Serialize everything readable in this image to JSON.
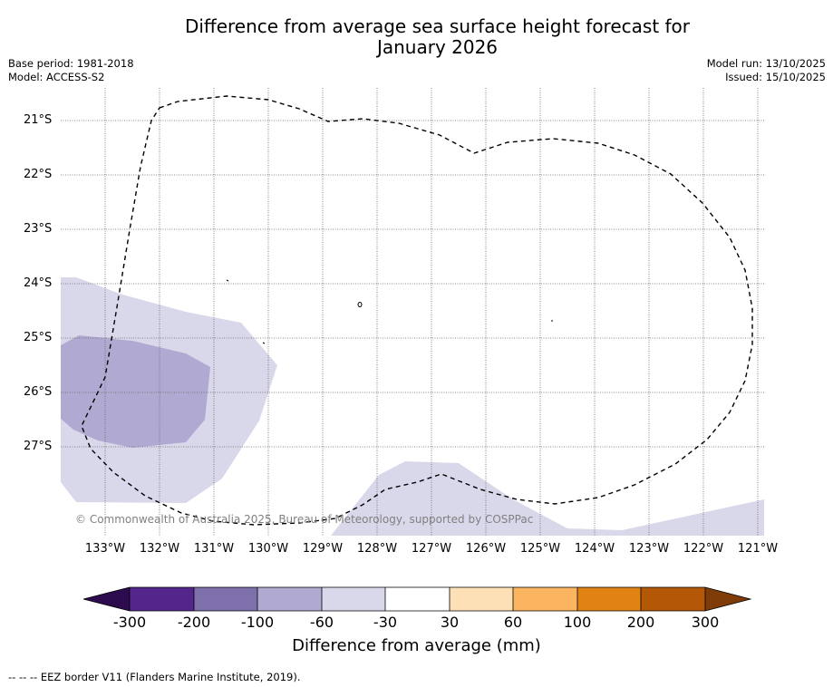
{
  "title_line1": "Difference from average sea surface height forecast for",
  "title_line2": "January 2026",
  "meta_left": {
    "base_period": "Base period: 1981-2018",
    "model": "Model: ACCESS-S2"
  },
  "meta_right": {
    "model_run": "Model run: 13/10/2025",
    "issued": "Issued: 15/10/2025"
  },
  "latitude_labels": [
    "21°S",
    "22°S",
    "23°S",
    "24°S",
    "25°S",
    "26°S",
    "27°S"
  ],
  "longitude_labels": [
    "133°W",
    "132°W",
    "131°W",
    "130°W",
    "129°W",
    "128°W",
    "127°W",
    "126°W",
    "125°W",
    "124°W",
    "123°W",
    "122°W",
    "121°W"
  ],
  "copyright": "© Commonwealth of Australia 2025, Bureau of Meteorology, supported by COSPPac",
  "colorbar": {
    "ticks": [
      "-300",
      "-200",
      "-100",
      "-60",
      "-30",
      "30",
      "60",
      "100",
      "200",
      "300"
    ],
    "colors": [
      "#2d0b4f",
      "#54258a",
      "#7e70ab",
      "#b0a9d1",
      "#d9d8ea",
      "#ffffff",
      "#fee0b6",
      "#fbb45f",
      "#e08214",
      "#b35806",
      "#7f3b08"
    ],
    "label": "Difference from average (mm)"
  },
  "footer": "--  --  -- EEZ border V11 (Flanders Marine Institute, 2019)."
}
